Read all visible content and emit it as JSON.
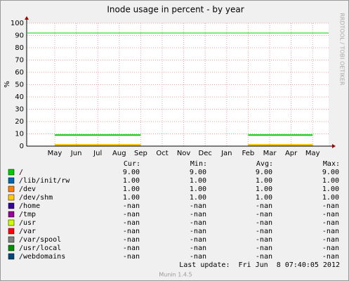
{
  "chart_data": {
    "type": "line",
    "title": "Inode usage in percent - by year",
    "ylabel": "%",
    "side_text": "RRDTOOL / TOBI OETIKER",
    "categories": [
      "May",
      "Jun",
      "Jul",
      "Aug",
      "Sep",
      "Oct",
      "Nov",
      "Dec",
      "Jan",
      "Feb",
      "Mar",
      "Apr",
      "May"
    ],
    "ylim": [
      0,
      100
    ],
    "yticks": [
      0,
      10,
      20,
      30,
      40,
      50,
      60,
      70,
      80,
      90,
      100
    ],
    "grid": true,
    "reference_lines": [
      {
        "value": 92,
        "color": "#00cc00"
      }
    ],
    "stat_headers": [
      "Cur:",
      "Min:",
      "Avg:",
      "Max:"
    ],
    "series": [
      {
        "name": "/",
        "color": "#00cc00",
        "values": [
          9,
          9,
          9,
          9,
          9,
          null,
          null,
          null,
          null,
          9,
          9,
          9,
          9
        ],
        "stats": [
          "9.00",
          "9.00",
          "9.00",
          "9.00"
        ]
      },
      {
        "name": "/lib/init/rw",
        "color": "#0066b3",
        "values": [
          1,
          1,
          1,
          1,
          1,
          null,
          null,
          null,
          null,
          1,
          1,
          1,
          1
        ],
        "stats": [
          "1.00",
          "1.00",
          "1.00",
          "1.00"
        ]
      },
      {
        "name": "/dev",
        "color": "#ff8000",
        "values": [
          1,
          1,
          1,
          1,
          1,
          null,
          null,
          null,
          null,
          1,
          1,
          1,
          1
        ],
        "stats": [
          "1.00",
          "1.00",
          "1.00",
          "1.00"
        ]
      },
      {
        "name": "/dev/shm",
        "color": "#ffcc00",
        "values": [
          1,
          1,
          1,
          1,
          1,
          null,
          null,
          null,
          null,
          1,
          1,
          1,
          1
        ],
        "stats": [
          "1.00",
          "1.00",
          "1.00",
          "1.00"
        ]
      },
      {
        "name": "/home",
        "color": "#330099",
        "values": [
          null,
          null,
          null,
          null,
          null,
          null,
          null,
          null,
          null,
          null,
          null,
          null,
          null
        ],
        "stats": [
          "-nan",
          "-nan",
          "-nan",
          "-nan"
        ]
      },
      {
        "name": "/tmp",
        "color": "#990099",
        "values": [
          null,
          null,
          null,
          null,
          null,
          null,
          null,
          null,
          null,
          null,
          null,
          null,
          null
        ],
        "stats": [
          "-nan",
          "-nan",
          "-nan",
          "-nan"
        ]
      },
      {
        "name": "/usr",
        "color": "#ccff00",
        "values": [
          null,
          null,
          null,
          null,
          null,
          null,
          null,
          null,
          null,
          null,
          null,
          null,
          null
        ],
        "stats": [
          "-nan",
          "-nan",
          "-nan",
          "-nan"
        ]
      },
      {
        "name": "/var",
        "color": "#ff0000",
        "values": [
          null,
          null,
          null,
          null,
          null,
          null,
          null,
          null,
          null,
          null,
          null,
          null,
          null
        ],
        "stats": [
          "-nan",
          "-nan",
          "-nan",
          "-nan"
        ]
      },
      {
        "name": "/var/spool",
        "color": "#808080",
        "values": [
          null,
          null,
          null,
          null,
          null,
          null,
          null,
          null,
          null,
          null,
          null,
          null,
          null
        ],
        "stats": [
          "-nan",
          "-nan",
          "-nan",
          "-nan"
        ]
      },
      {
        "name": "/usr/local",
        "color": "#008f00",
        "values": [
          null,
          null,
          null,
          null,
          null,
          null,
          null,
          null,
          null,
          null,
          null,
          null,
          null
        ],
        "stats": [
          "-nan",
          "-nan",
          "-nan",
          "-nan"
        ]
      },
      {
        "name": "/webdomains",
        "color": "#00487d",
        "values": [
          null,
          null,
          null,
          null,
          null,
          null,
          null,
          null,
          null,
          null,
          null,
          null,
          null
        ],
        "stats": [
          "-nan",
          "-nan",
          "-nan",
          "-nan"
        ]
      }
    ],
    "last_update": "Last update:  Fri Jun  8 07:40:05 2012",
    "footer": "Munin 1.4.5"
  }
}
